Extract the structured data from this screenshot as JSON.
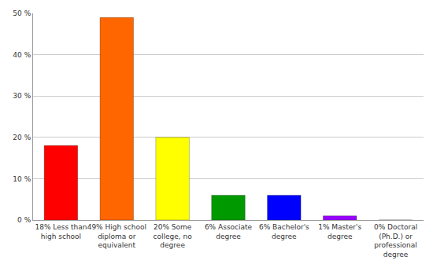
{
  "chart_data": {
    "type": "bar",
    "categories": [
      "18% Less than high school",
      "49% High school diploma or equivalent",
      "20% Some college, no degree",
      "6% Associate degree",
      "6% Bachelor's degree",
      "1% Master's degree",
      "0% Doctoral (Ph.D.) or professional degree"
    ],
    "values": [
      18,
      49,
      20,
      6,
      6,
      1,
      0
    ],
    "colors": [
      "#ff0000",
      "#ff6600",
      "#ffff00",
      "#009900",
      "#0000ff",
      "#9900ff",
      "#ff00ff"
    ],
    "ylim": [
      0,
      50
    ],
    "yticks": [
      {
        "value": 0,
        "label": "0 %"
      },
      {
        "value": 10,
        "label": "10 %"
      },
      {
        "value": 20,
        "label": "20 %"
      },
      {
        "value": 30,
        "label": "30 %"
      },
      {
        "value": 40,
        "label": "40 %"
      },
      {
        "value": 50,
        "label": "50 %"
      }
    ],
    "grid": true
  }
}
